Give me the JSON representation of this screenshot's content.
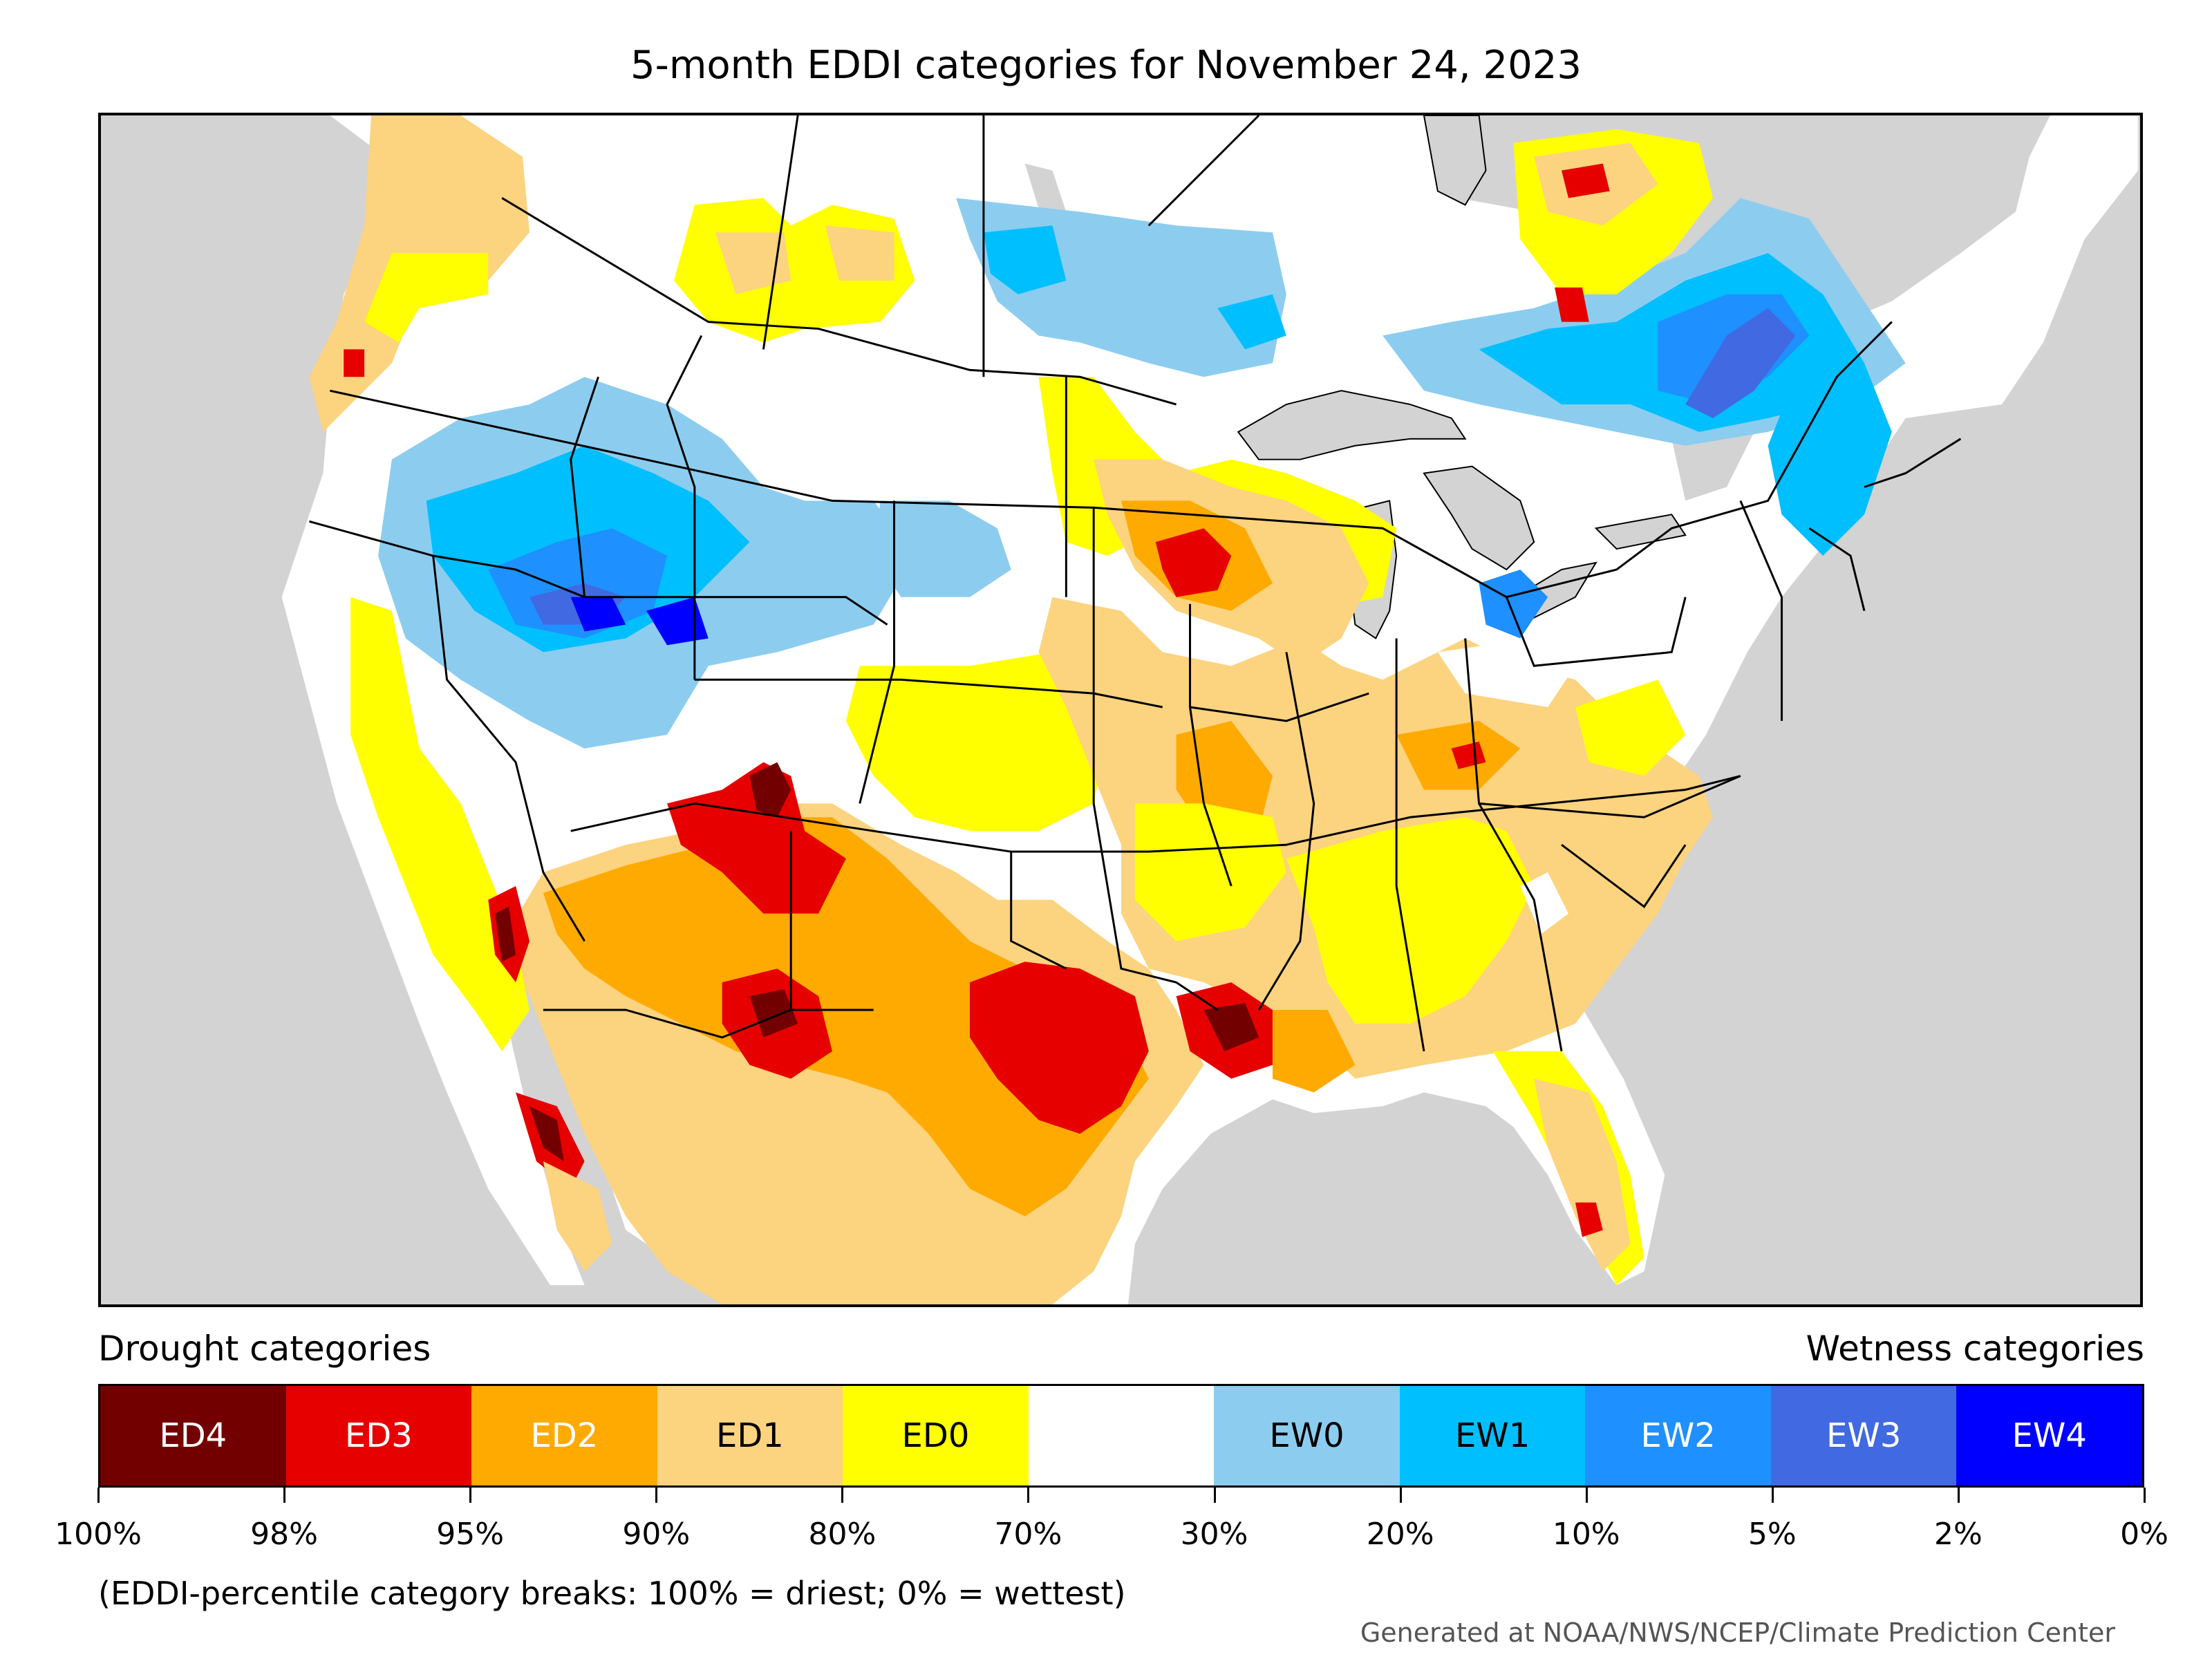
{
  "title": "5-month EDDI categories for November 24, 2023",
  "legend": {
    "drought_heading": "Drought categories",
    "wetness_heading": "Wetness categories",
    "categories": [
      {
        "label": "ED4",
        "color": "#730000",
        "text_color": "#ffffff"
      },
      {
        "label": "ED3",
        "color": "#e60000",
        "text_color": "#ffffff"
      },
      {
        "label": "ED2",
        "color": "#ffaa00",
        "text_color": "#ffffff"
      },
      {
        "label": "ED1",
        "color": "#fcd37f",
        "text_color": "#000000"
      },
      {
        "label": "ED0",
        "color": "#ffff00",
        "text_color": "#000000"
      },
      {
        "label": "",
        "color": "#ffffff",
        "text_color": "#000000"
      },
      {
        "label": "EW0",
        "color": "#8ccdef",
        "text_color": "#000000"
      },
      {
        "label": "EW1",
        "color": "#00bfff",
        "text_color": "#000000"
      },
      {
        "label": "EW2",
        "color": "#1e90ff",
        "text_color": "#ffffff"
      },
      {
        "label": "EW3",
        "color": "#4169e1",
        "text_color": "#ffffff"
      },
      {
        "label": "EW4",
        "color": "#0000ff",
        "text_color": "#ffffff"
      }
    ],
    "breaks": [
      "100%",
      "98%",
      "95%",
      "90%",
      "80%",
      "70%",
      "30%",
      "20%",
      "10%",
      "5%",
      "2%",
      "0%"
    ]
  },
  "note": "(EDDI-percentile category breaks: 100% = driest; 0% = wettest)",
  "credit": "Generated at NOAA/NWS/NCEP/Climate Prediction Center",
  "map": {
    "ocean_color": "#d3d3d3",
    "land_base_color": "#ffffff",
    "border_color": "#000000"
  }
}
